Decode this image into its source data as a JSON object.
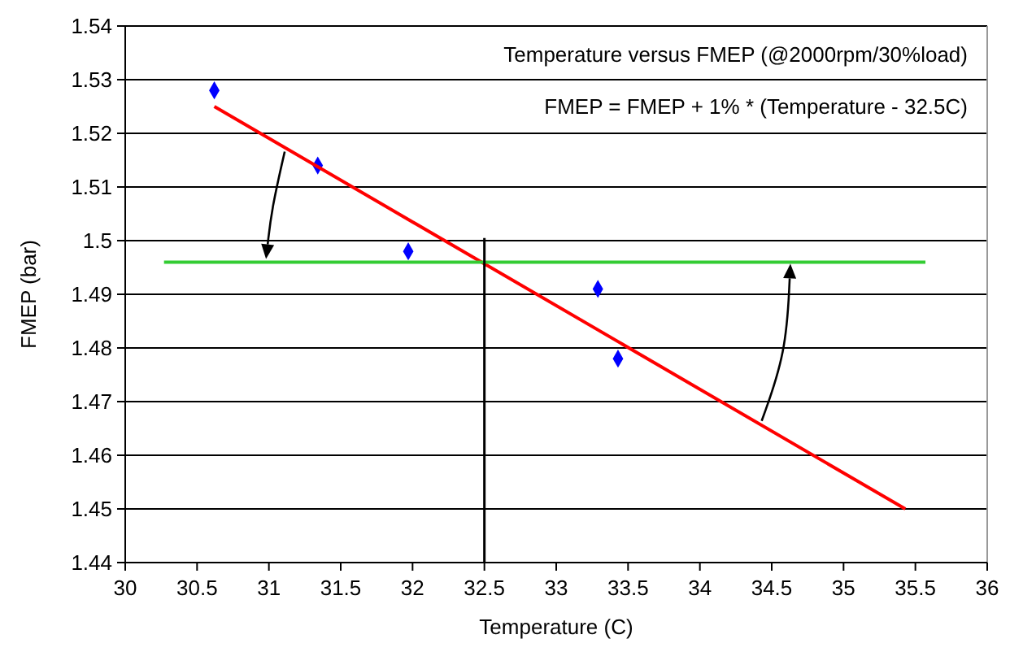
{
  "chart_data": {
    "type": "scatter",
    "xlabel": "Temperature (C)",
    "ylabel": "FMEP (bar)",
    "annotations": [
      "Temperature versus FMEP (@2000rpm/30%load)",
      "FMEP = FMEP + 1% * (Temperature - 32.5C)"
    ],
    "series": [
      {
        "color": "#0000ff",
        "marker": "diamond",
        "x": [
          30.62,
          31.34,
          31.97,
          33.29,
          33.43
        ],
        "values": [
          1.528,
          1.514,
          1.498,
          1.491,
          1.478
        ]
      },
      {
        "type": "line",
        "color": "#ff0000",
        "marker": "none",
        "x": [
          30.62,
          35.43
        ],
        "values": [
          1.525,
          1.45
        ]
      },
      {
        "type": "line",
        "color": "#33cc33",
        "marker": "none",
        "x": [
          30.27,
          35.57
        ],
        "values": [
          1.496,
          1.496
        ]
      },
      {
        "type": "line",
        "color": "#000000",
        "marker": "none",
        "x": [
          32.5,
          32.5
        ],
        "values": [
          1.44,
          1.5005
        ]
      }
    ],
    "xlim": [
      30,
      36
    ],
    "xticks": [
      30,
      30.5,
      31,
      31.5,
      32,
      32.5,
      33,
      33.5,
      34,
      34.5,
      35,
      35.5,
      36
    ],
    "ylim": [
      1.44,
      1.54
    ],
    "yticks": [
      1.44,
      1.45,
      1.46,
      1.47,
      1.48,
      1.49,
      {
        "value": 1.5,
        "label": "1.5"
      },
      1.51,
      1.52,
      1.53,
      1.54
    ],
    "grid": "y"
  }
}
